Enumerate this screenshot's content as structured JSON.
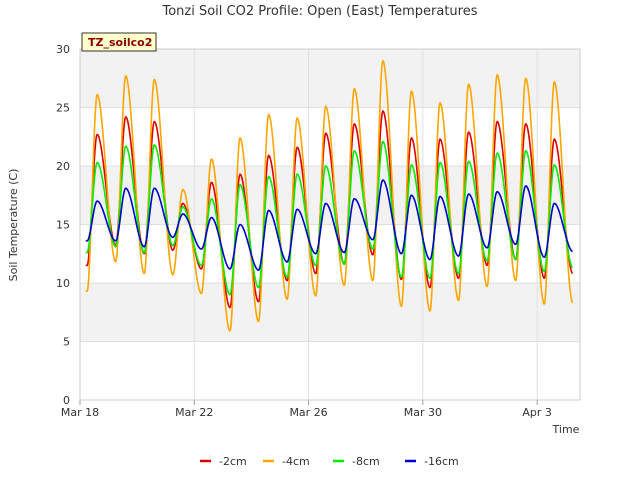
{
  "chart_data": {
    "type": "line",
    "title": "Tonzi Soil CO2 Profile: Open (East) Temperatures",
    "xlabel": "Time",
    "ylabel": "Soil Temperature (C)",
    "badge": "TZ_soilco2",
    "ylim": [
      0,
      30
    ],
    "xlim": [
      0,
      17.5
    ],
    "yticks": [
      0,
      5,
      10,
      15,
      20,
      25,
      30
    ],
    "xticks": [
      {
        "x": 0,
        "label": "Mar 18"
      },
      {
        "x": 4,
        "label": "Mar 22"
      },
      {
        "x": 8,
        "label": "Mar 26"
      },
      {
        "x": 12,
        "label": "Mar 30"
      },
      {
        "x": 16,
        "label": "Apr 3"
      }
    ],
    "grid": true,
    "legend_position": "bottom",
    "days": [
      0.25,
      1.25,
      2.25,
      3.25,
      4.25,
      5.25,
      6.25,
      7.25,
      8.25,
      9.25,
      10.25,
      11.25,
      12.25,
      13.25,
      14.25,
      15.25,
      16.25,
      17.25
    ],
    "series": [
      {
        "name": "-2cm",
        "color": "#dd0000",
        "peaks": [
          22.7,
          24.2,
          23.8,
          16.8,
          18.6,
          19.3,
          20.9,
          21.6,
          22.8,
          23.6,
          24.7,
          22.4,
          22.3,
          22.9,
          23.8,
          23.6,
          22.3,
          22.0
        ],
        "mins": [
          11.5,
          13.2,
          12.5,
          12.8,
          11.2,
          7.9,
          8.4,
          10.2,
          10.8,
          11.6,
          12.4,
          10.3,
          9.6,
          10.4,
          11.5,
          12.0,
          10.4,
          10.8
        ]
      },
      {
        "name": "-4cm",
        "color": "#ffa500",
        "peaks": [
          26.1,
          27.7,
          27.4,
          18.0,
          20.6,
          22.4,
          24.4,
          24.1,
          25.1,
          26.6,
          29.0,
          26.4,
          25.4,
          27.0,
          27.8,
          27.5,
          27.2,
          26.5
        ],
        "mins": [
          9.3,
          11.8,
          10.8,
          10.7,
          9.1,
          5.9,
          6.7,
          8.6,
          8.9,
          9.8,
          10.2,
          8.0,
          7.6,
          8.5,
          9.7,
          10.2,
          8.2,
          8.3
        ]
      },
      {
        "name": "-8cm",
        "color": "#00ee00",
        "peaks": [
          20.3,
          21.7,
          21.8,
          16.5,
          17.2,
          18.4,
          19.1,
          19.3,
          20.0,
          21.3,
          22.1,
          20.1,
          20.3,
          20.4,
          21.1,
          21.3,
          20.1,
          19.6
        ],
        "mins": [
          12.6,
          13.1,
          12.6,
          13.2,
          11.5,
          9.0,
          9.6,
          10.5,
          11.5,
          11.6,
          12.9,
          10.5,
          10.4,
          10.8,
          11.9,
          12.0,
          11.0,
          11.3
        ]
      },
      {
        "name": "-16cm",
        "color": "#0000cc",
        "peaks": [
          17.0,
          18.1,
          18.1,
          15.9,
          15.6,
          15.0,
          16.2,
          16.3,
          16.8,
          17.2,
          18.8,
          17.5,
          17.4,
          17.6,
          17.8,
          18.3,
          16.8,
          16.5
        ],
        "mins": [
          13.6,
          13.6,
          13.1,
          13.9,
          12.9,
          11.2,
          11.1,
          11.8,
          12.5,
          12.6,
          13.7,
          12.5,
          12.0,
          12.3,
          13.0,
          13.3,
          12.2,
          12.7
        ]
      }
    ]
  }
}
